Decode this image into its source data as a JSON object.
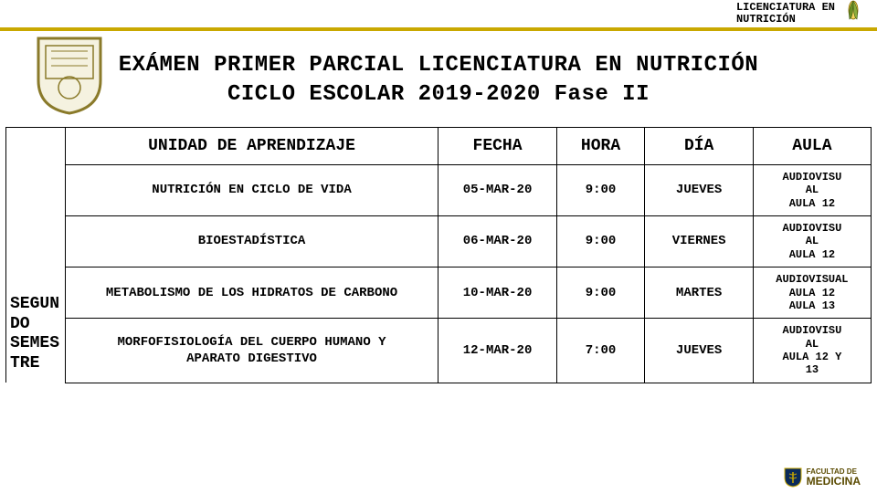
{
  "header": {
    "program_line1": "LICENCIATURA EN",
    "program_line2": "NUTRICIÓN"
  },
  "title": {
    "line1": "EXÁMEN PRIMER PARCIAL LICENCIATURA EN NUTRICIÓN",
    "line2": "CICLO ESCOLAR 2019-2020 Fase II"
  },
  "table": {
    "headers": {
      "unidad": "UNIDAD DE APRENDIZAJE",
      "fecha": "FECHA",
      "hora": "HORA",
      "dia": "DÍA",
      "aula": "AULA"
    },
    "semester_label": "SEGUN\nDO\nSEMES\nTRE",
    "rows": [
      {
        "unidad": "NUTRICIÓN EN CICLO DE VIDA",
        "fecha": "05-MAR-20",
        "hora": "9:00",
        "dia": "JUEVES",
        "aula": "AUDIOVISU\nAL\nAULA 12"
      },
      {
        "unidad": "BIOESTADÍSTICA",
        "fecha": "06-MAR-20",
        "hora": "9:00",
        "dia": "VIERNES",
        "aula": "AUDIOVISU\nAL\nAULA 12"
      },
      {
        "unidad": "METABOLISMO DE LOS HIDRATOS DE CARBONO",
        "fecha": "10-MAR-20",
        "hora": "9:00",
        "dia": "MARTES",
        "aula": "AUDIOVISUAL\nAULA 12\nAULA 13"
      },
      {
        "unidad": "MORFOFISIOLOGÍA DEL CUERPO HUMANO Y\nAPARATO DIGESTIVO",
        "fecha": "12-MAR-20",
        "hora": "7:00",
        "dia": "JUEVES",
        "aula": "AUDIOVISU\nAL\nAULA 12 Y\n13"
      }
    ]
  },
  "footer": {
    "line1": "FACULTAD DE",
    "line2": "MEDICINA"
  },
  "colors": {
    "gold": "#c9a800",
    "text": "#000000",
    "bg": "#ffffff",
    "footer_text": "#5a4a00"
  }
}
